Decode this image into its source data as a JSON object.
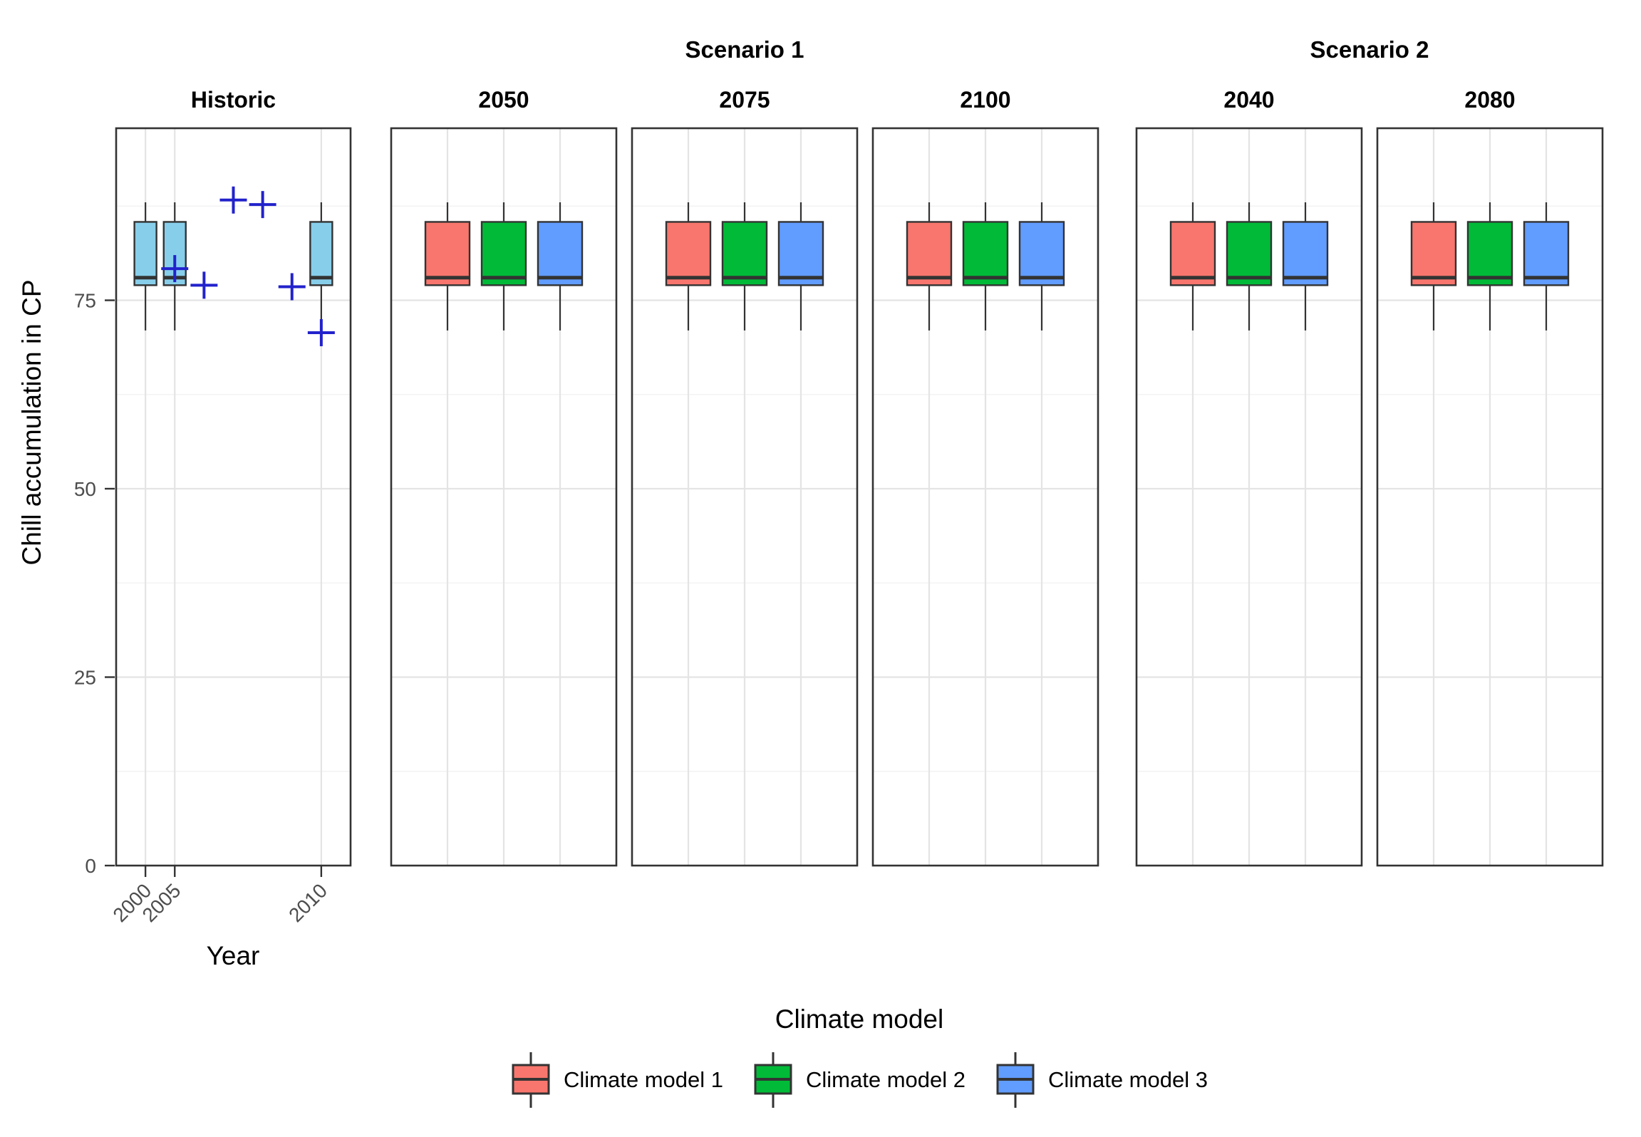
{
  "chart_data": {
    "type": "boxplot",
    "scenario_headers": [
      "Scenario 1",
      "Scenario 2"
    ],
    "ylabel": "Chill accumulation in CP",
    "xlabel": "Year",
    "yticks": [
      0,
      25,
      50,
      75
    ],
    "y_minor_gridlines": [
      12.5,
      37.5,
      62.5,
      87.5
    ],
    "ylim": [
      0,
      97.8
    ],
    "grid": "on",
    "colors": {
      "historic_fill": "#87CEEB",
      "model1": "#F8766D",
      "model2": "#00BA38",
      "model3": "#619CFF",
      "observed_point": "#2222CC",
      "box_outline": "#333333",
      "tick_text": "#4d4d4d"
    },
    "observed_marker_shape": "plus",
    "default_box_stats": {
      "min": 71,
      "q1": 77,
      "median": 78,
      "q3": 85.4,
      "max": 88
    },
    "panels": [
      {
        "label": "Historic",
        "group": "",
        "x_axis": true,
        "boxes": [
          {
            "pos": 0.125,
            "tick_label": "2000",
            "color": "#87CEEB"
          },
          {
            "pos": 0.25,
            "tick_label": "2005",
            "color": "#87CEEB"
          },
          {
            "pos": 0.875,
            "tick_label": "2010",
            "color": "#87CEEB",
            "stats": {
              "min": 69,
              "q1": 77,
              "median": 78,
              "q3": 85.4,
              "max": 88
            }
          }
        ],
        "points": [
          {
            "pos": 0.25,
            "value": 79.2
          },
          {
            "pos": 0.375,
            "value": 77.0
          },
          {
            "pos": 0.5,
            "value": 88.3
          },
          {
            "pos": 0.625,
            "value": 87.7
          },
          {
            "pos": 0.75,
            "value": 76.8
          },
          {
            "pos": 0.875,
            "value": 70.7
          }
        ]
      },
      {
        "label": "2050",
        "group": "Scenario 1",
        "x_axis": false,
        "boxes": [
          {
            "pos": 0.25,
            "model": "Climate model 1",
            "color": "#F8766D"
          },
          {
            "pos": 0.5,
            "model": "Climate model 2",
            "color": "#00BA38"
          },
          {
            "pos": 0.75,
            "model": "Climate model 3",
            "color": "#619CFF"
          }
        ],
        "points": []
      },
      {
        "label": "2075",
        "group": "Scenario 1",
        "x_axis": false,
        "boxes": [
          {
            "pos": 0.25,
            "model": "Climate model 1",
            "color": "#F8766D"
          },
          {
            "pos": 0.5,
            "model": "Climate model 2",
            "color": "#00BA38"
          },
          {
            "pos": 0.75,
            "model": "Climate model 3",
            "color": "#619CFF"
          }
        ],
        "points": []
      },
      {
        "label": "2100",
        "group": "Scenario 1",
        "x_axis": false,
        "boxes": [
          {
            "pos": 0.25,
            "model": "Climate model 1",
            "color": "#F8766D"
          },
          {
            "pos": 0.5,
            "model": "Climate model 2",
            "color": "#00BA38"
          },
          {
            "pos": 0.75,
            "model": "Climate model 3",
            "color": "#619CFF"
          }
        ],
        "points": []
      },
      {
        "label": "2040",
        "group": "Scenario 2",
        "x_axis": false,
        "boxes": [
          {
            "pos": 0.25,
            "model": "Climate model 1",
            "color": "#F8766D"
          },
          {
            "pos": 0.5,
            "model": "Climate model 2",
            "color": "#00BA38"
          },
          {
            "pos": 0.75,
            "model": "Climate model 3",
            "color": "#619CFF"
          }
        ],
        "points": []
      },
      {
        "label": "2080",
        "group": "Scenario 2",
        "x_axis": false,
        "boxes": [
          {
            "pos": 0.25,
            "model": "Climate model 1",
            "color": "#F8766D"
          },
          {
            "pos": 0.5,
            "model": "Climate model 2",
            "color": "#00BA38"
          },
          {
            "pos": 0.75,
            "model": "Climate model 3",
            "color": "#619CFF"
          }
        ],
        "points": []
      }
    ],
    "legend": {
      "title": "Climate model",
      "position": "bottom",
      "entries": [
        {
          "label": "Climate model 1",
          "color": "#F8766D"
        },
        {
          "label": "Climate model 2",
          "color": "#00BA38"
        },
        {
          "label": "Climate model 3",
          "color": "#619CFF"
        }
      ]
    }
  }
}
